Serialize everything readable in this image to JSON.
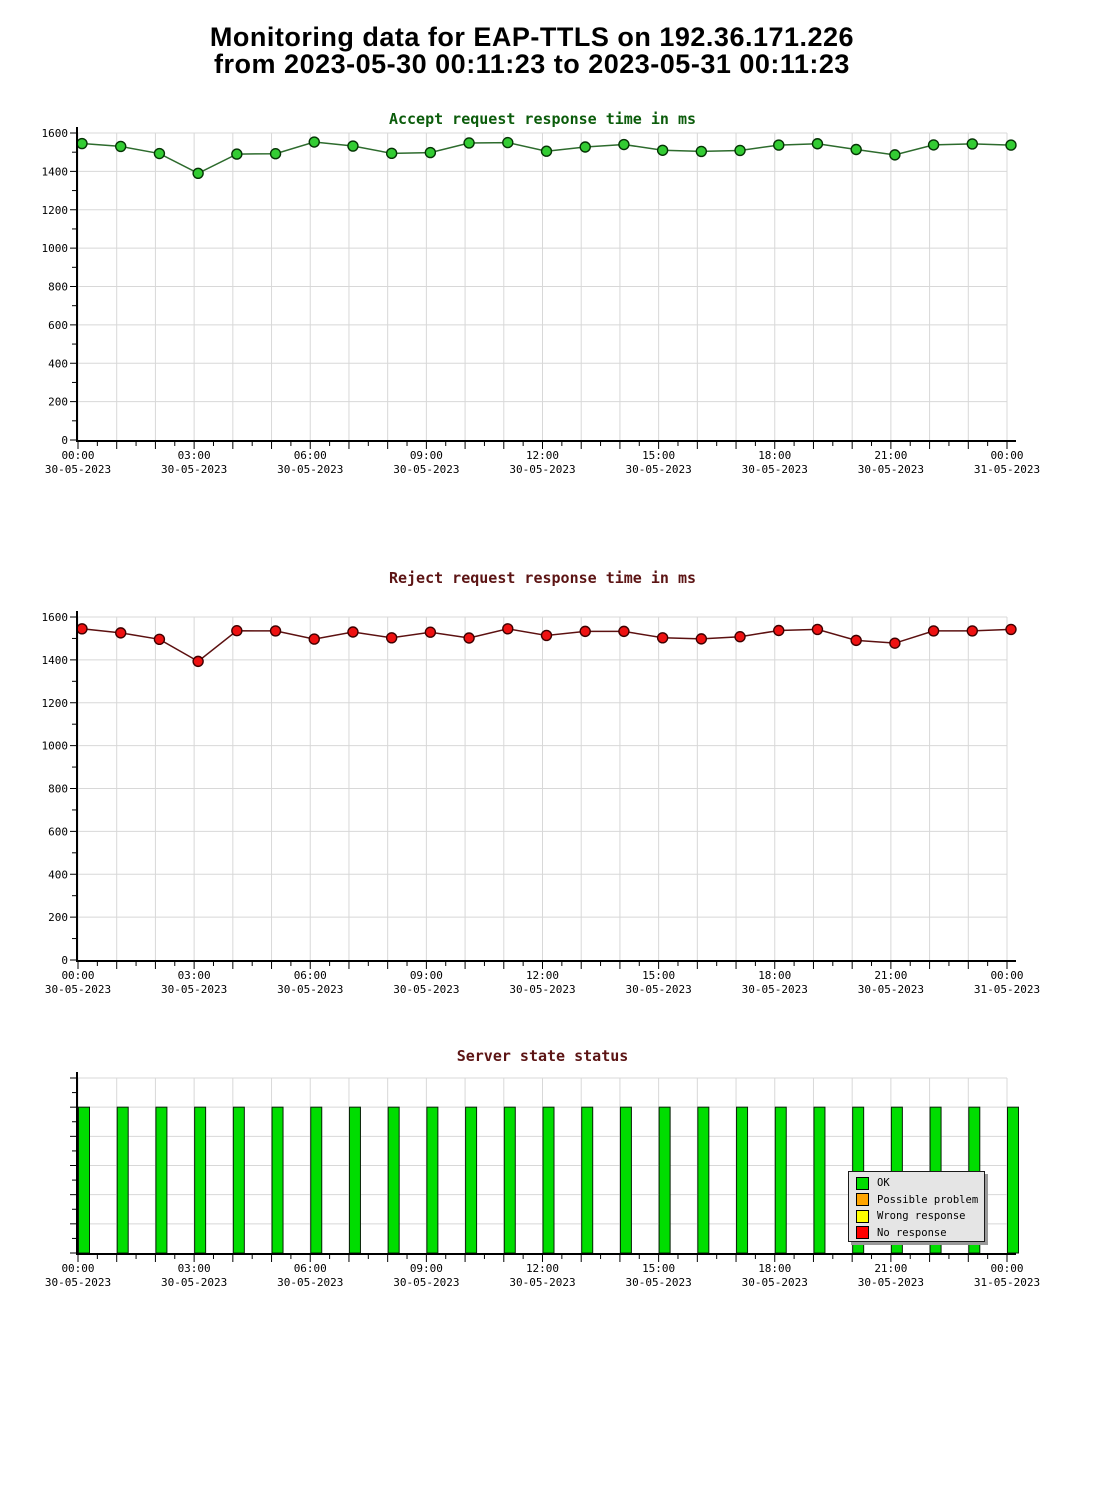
{
  "header": {
    "title_line1": "Monitoring data for EAP-TTLS on 192.36.171.226",
    "title_line2": "from 2023-05-30 00:11:23 to 2023-05-31 00:11:23"
  },
  "chart_data": [
    {
      "type": "line",
      "title": "Accept request response time in ms",
      "title_color": "#0b5c0b",
      "line_color": "#2d6b2d",
      "point_fill": "#33cc33",
      "point_stroke": "#043304",
      "ylim": [
        0,
        1600
      ],
      "ytick_step": 200,
      "ytick_labels": [
        "0",
        "200",
        "400",
        "600",
        "800",
        "1000",
        "1200",
        "1400",
        "1600"
      ],
      "x_hours": [
        0,
        1,
        2,
        3,
        4,
        5,
        6,
        7,
        8,
        9,
        10,
        11,
        12,
        13,
        14,
        15,
        16,
        17,
        18,
        19,
        20,
        21,
        22,
        23,
        24
      ],
      "values": [
        1545,
        1530,
        1493,
        1390,
        1490,
        1492,
        1553,
        1532,
        1494,
        1498,
        1548,
        1550,
        1505,
        1527,
        1540,
        1510,
        1504,
        1509,
        1537,
        1544,
        1514,
        1486,
        1538,
        1543,
        1537
      ],
      "grid": true,
      "xtick_labels": [
        {
          "time": "00:00",
          "date": "30-05-2023"
        },
        {
          "time": "03:00",
          "date": "30-05-2023"
        },
        {
          "time": "06:00",
          "date": "30-05-2023"
        },
        {
          "time": "09:00",
          "date": "30-05-2023"
        },
        {
          "time": "12:00",
          "date": "30-05-2023"
        },
        {
          "time": "15:00",
          "date": "30-05-2023"
        },
        {
          "time": "18:00",
          "date": "30-05-2023"
        },
        {
          "time": "21:00",
          "date": "30-05-2023"
        },
        {
          "time": "00:00",
          "date": "31-05-2023"
        }
      ]
    },
    {
      "type": "line",
      "title": "Reject request response time in ms",
      "title_color": "#5c1414",
      "line_color": "#5c1010",
      "point_fill": "#ee1111",
      "point_stroke": "#3d0000",
      "ylim": [
        0,
        1600
      ],
      "ytick_step": 200,
      "ytick_labels": [
        "0",
        "200",
        "400",
        "600",
        "800",
        "1000",
        "1200",
        "1400",
        "1600"
      ],
      "x_hours": [
        0,
        1,
        2,
        3,
        4,
        5,
        6,
        7,
        8,
        9,
        10,
        11,
        12,
        13,
        14,
        15,
        16,
        17,
        18,
        19,
        20,
        21,
        22,
        23,
        24
      ],
      "values": [
        1545,
        1526,
        1496,
        1393,
        1536,
        1535,
        1497,
        1530,
        1503,
        1529,
        1502,
        1545,
        1514,
        1533,
        1533,
        1503,
        1498,
        1508,
        1537,
        1542,
        1491,
        1478,
        1535,
        1535,
        1542
      ],
      "grid": true,
      "xtick_labels": [
        {
          "time": "00:00",
          "date": "30-05-2023"
        },
        {
          "time": "03:00",
          "date": "30-05-2023"
        },
        {
          "time": "06:00",
          "date": "30-05-2023"
        },
        {
          "time": "09:00",
          "date": "30-05-2023"
        },
        {
          "time": "12:00",
          "date": "30-05-2023"
        },
        {
          "time": "15:00",
          "date": "30-05-2023"
        },
        {
          "time": "18:00",
          "date": "30-05-2023"
        },
        {
          "time": "21:00",
          "date": "30-05-2023"
        },
        {
          "time": "00:00",
          "date": "31-05-2023"
        }
      ]
    },
    {
      "type": "bar",
      "title": "Server state status",
      "title_color": "#5c1414",
      "bar_color": "#00dd00",
      "bar_stroke": "#062206",
      "x_hours": [
        0,
        1,
        2,
        3,
        4,
        5,
        6,
        7,
        8,
        9,
        10,
        11,
        12,
        13,
        14,
        15,
        16,
        17,
        18,
        19,
        20,
        21,
        22,
        23,
        24
      ],
      "statuses": [
        "OK",
        "OK",
        "OK",
        "OK",
        "OK",
        "OK",
        "OK",
        "OK",
        "OK",
        "OK",
        "OK",
        "OK",
        "OK",
        "OK",
        "OK",
        "OK",
        "OK",
        "OK",
        "OK",
        "OK",
        "OK",
        "OK",
        "OK",
        "OK",
        "OK"
      ],
      "grid": true,
      "legend_position": "right-inside",
      "legend": [
        {
          "label": "OK",
          "color": "#00dd00"
        },
        {
          "label": "Possible problem",
          "color": "#ffa500"
        },
        {
          "label": "Wrong response",
          "color": "#ffff00"
        },
        {
          "label": "No response",
          "color": "#ff0000"
        }
      ],
      "xtick_labels": [
        {
          "time": "00:00",
          "date": "30-05-2023"
        },
        {
          "time": "03:00",
          "date": "30-05-2023"
        },
        {
          "time": "06:00",
          "date": "30-05-2023"
        },
        {
          "time": "09:00",
          "date": "30-05-2023"
        },
        {
          "time": "12:00",
          "date": "30-05-2023"
        },
        {
          "time": "15:00",
          "date": "30-05-2023"
        },
        {
          "time": "18:00",
          "date": "30-05-2023"
        },
        {
          "time": "21:00",
          "date": "30-05-2023"
        },
        {
          "time": "00:00",
          "date": "31-05-2023"
        }
      ]
    }
  ]
}
